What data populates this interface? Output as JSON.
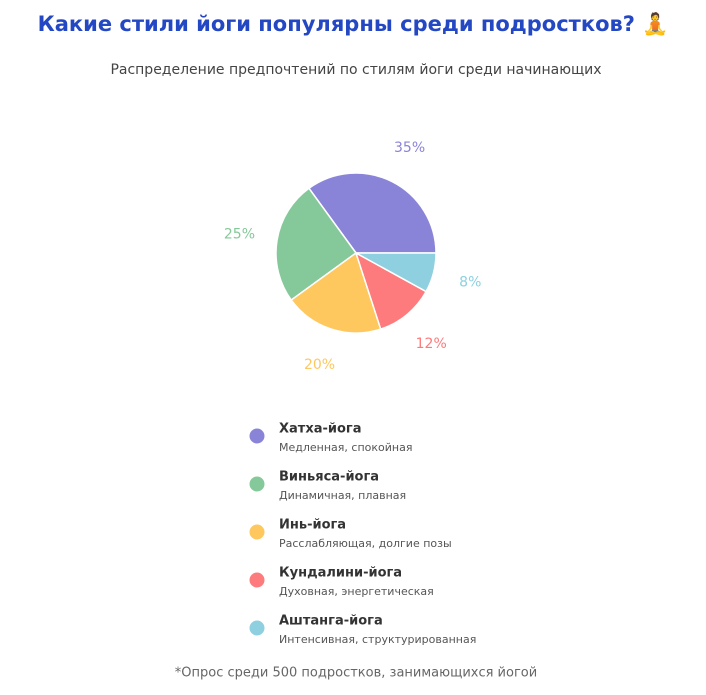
{
  "chart_data": {
    "type": "pie",
    "title": "Какие стили йоги популярны среди подростков? 🧘",
    "subtitle": "Распределение предпочтений по стилям йоги среди начинающих",
    "categories": [
      "Хатха-йога",
      "Виньяса-йога",
      "Инь-йога",
      "Кундалини-йога",
      "Аштанга-йога"
    ],
    "descriptions": [
      "Медленная, спокойная",
      "Динамичная, плавная",
      "Расслабляющая, долгие позы",
      "Духовная, энергетическая",
      "Интенсивная, структурированная"
    ],
    "values": [
      35,
      25,
      20,
      12,
      8
    ],
    "value_labels": [
      "35%",
      "25%",
      "20%",
      "12%",
      "8%"
    ],
    "colors": [
      "#8a84d9",
      "#85c99a",
      "#fec85e",
      "#fd7b7c",
      "#8fd0e0"
    ],
    "note": "*Опрос среди 500 подростков, занимающихся йогой"
  }
}
